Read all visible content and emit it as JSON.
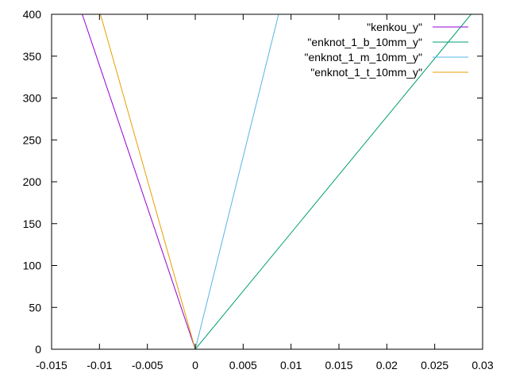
{
  "chart_data": {
    "type": "line",
    "title": "",
    "xlabel": "",
    "ylabel": "",
    "xlim": [
      -0.015,
      0.03
    ],
    "ylim": [
      0,
      400
    ],
    "grid": false,
    "legend_position": "top-right",
    "x_ticks": [
      "-0.015",
      "-0.01",
      "-0.005",
      "0",
      "0.005",
      "0.01",
      "0.015",
      "0.02",
      "0.025",
      "0.03"
    ],
    "x_tick_values": [
      -0.015,
      -0.01,
      -0.005,
      0,
      0.005,
      0.01,
      0.015,
      0.02,
      0.025,
      0.03
    ],
    "y_ticks": [
      "0",
      "50",
      "100",
      "150",
      "200",
      "250",
      "300",
      "350",
      "400"
    ],
    "y_tick_values": [
      0,
      50,
      100,
      150,
      200,
      250,
      300,
      350,
      400
    ],
    "series": [
      {
        "name": "\"kenkou_y\"",
        "color": "#9400d3",
        "points": [
          [
            0,
            0
          ],
          [
            -0.0118,
            400
          ]
        ]
      },
      {
        "name": "\"enknot_1_b_10mm_y\"",
        "color": "#009e73",
        "points": [
          [
            0,
            0
          ],
          [
            0.0288,
            400
          ]
        ]
      },
      {
        "name": "\"enknot_1_m_10mm_y\"",
        "color": "#56b4e9",
        "points": [
          [
            0,
            0
          ],
          [
            0.0087,
            400
          ]
        ]
      },
      {
        "name": "\"enknot_1_t_10mm_y\"",
        "color": "#e69f00",
        "points": [
          [
            0,
            0
          ],
          [
            -0.0099,
            400
          ]
        ]
      }
    ]
  }
}
